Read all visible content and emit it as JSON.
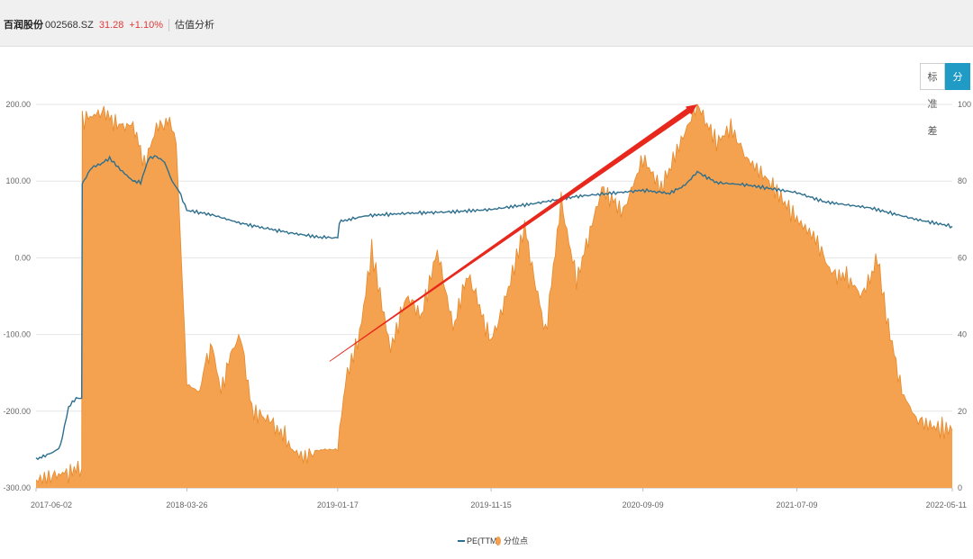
{
  "header": {
    "stock_name": "百润股份",
    "stock_code": "002568.SZ",
    "price": "31.28",
    "change": "+1.10%",
    "tab_label": "估值分析"
  },
  "toggle": {
    "std_label": "标准差",
    "percentile_label": "分位点"
  },
  "colors": {
    "pe_line": "#2e6f8e",
    "percentile_area": "#f4a24f",
    "percentile_edge": "#e6892c",
    "active_tab": "#1f9bc6",
    "arrow": "#e8281c"
  },
  "chart_data": {
    "type": "line",
    "x_type": "date",
    "x_range": [
      "2017-06-02",
      "2022-05-11"
    ],
    "x_ticks": [
      "2017-06-02",
      "2018-03-26",
      "2019-01-17",
      "2019-11-15",
      "2020-09-09",
      "2021-07-09",
      "2022-05-11"
    ],
    "left_axis": {
      "ylim": [
        -300,
        200
      ],
      "ticks": [
        "200.00",
        "100.00",
        "0.00",
        "-100.00",
        "-200.00",
        "-300.00"
      ]
    },
    "right_axis": {
      "ylim": [
        0,
        100
      ],
      "ticks": [
        "100",
        "80",
        "60",
        "40",
        "20",
        "0"
      ]
    },
    "legend_position": "bottom-center",
    "annotation": {
      "type": "arrow",
      "from": [
        "2019-01-01",
        33
      ],
      "to": [
        "2020-12-25",
        100
      ]
    },
    "series": [
      {
        "name": "PE(TTM)",
        "type": "line",
        "axis": "left",
        "x": [
          "2017-06-02",
          "2017-06-20",
          "2017-07-10",
          "2017-07-20",
          "2017-08-05",
          "2017-08-20",
          "2017-08-31",
          "2017-09-01",
          "2017-09-20",
          "2017-10-10",
          "2017-10-25",
          "2017-11-15",
          "2017-12-10",
          "2017-12-25",
          "2018-01-10",
          "2018-01-25",
          "2018-02-10",
          "2018-02-25",
          "2018-03-05",
          "2018-03-10",
          "2018-03-26",
          "2018-05-15",
          "2018-07-10",
          "2018-09-01",
          "2018-10-20",
          "2018-12-10",
          "2019-01-17",
          "2019-01-20",
          "2019-03-15",
          "2019-06-01",
          "2019-09-01",
          "2019-11-15",
          "2020-02-01",
          "2020-05-01",
          "2020-09-09",
          "2020-11-01",
          "2020-12-01",
          "2020-12-25",
          "2021-02-01",
          "2021-04-01",
          "2021-07-09",
          "2021-09-01",
          "2021-12-01",
          "2022-03-01",
          "2022-05-11"
        ],
        "y": [
          -262,
          -258,
          -252,
          -245,
          -195,
          -183,
          -183,
          97,
          118,
          123,
          130,
          115,
          100,
          98,
          130,
          132,
          125,
          100,
          92,
          88,
          62,
          56,
          45,
          38,
          32,
          27,
          26,
          47,
          55,
          58,
          60,
          63,
          70,
          80,
          88,
          84,
          95,
          112,
          98,
          95,
          85,
          73,
          65,
          50,
          41
        ]
      },
      {
        "name": "分位点",
        "type": "area",
        "axis": "right",
        "x": [
          "2017-06-02",
          "2017-07-01",
          "2017-08-01",
          "2017-08-31",
          "2017-09-01",
          "2017-10-10",
          "2017-11-20",
          "2017-12-10",
          "2018-01-01",
          "2018-01-25",
          "2018-02-20",
          "2018-03-05",
          "2018-03-26",
          "2018-04-20",
          "2018-05-01",
          "2018-05-15",
          "2018-06-01",
          "2018-06-20",
          "2018-07-10",
          "2018-08-01",
          "2018-09-01",
          "2018-10-01",
          "2018-10-20",
          "2018-11-10",
          "2018-12-15",
          "2019-01-17",
          "2019-02-01",
          "2019-03-01",
          "2019-03-25",
          "2019-05-01",
          "2019-06-01",
          "2019-07-01",
          "2019-08-01",
          "2019-09-01",
          "2019-10-01",
          "2019-11-15",
          "2019-12-15",
          "2020-01-20",
          "2020-03-01",
          "2020-04-01",
          "2020-05-01",
          "2020-06-20",
          "2020-08-01",
          "2020-09-09",
          "2020-10-15",
          "2020-11-15",
          "2020-12-25",
          "2021-02-01",
          "2021-03-01",
          "2021-04-01",
          "2021-05-15",
          "2021-07-09",
          "2021-08-15",
          "2021-09-15",
          "2021-10-15",
          "2021-11-15",
          "2021-12-15",
          "2022-01-01",
          "2022-02-01",
          "2022-03-01",
          "2022-04-01",
          "2022-05-11"
        ],
        "y": [
          2,
          3,
          4,
          5,
          96,
          98,
          94,
          95,
          84,
          94,
          96,
          90,
          27,
          25,
          32,
          37,
          25,
          35,
          40,
          20,
          18,
          14,
          10,
          8,
          10,
          10,
          28,
          40,
          62,
          36,
          50,
          45,
          62,
          42,
          56,
          38,
          50,
          68,
          40,
          75,
          54,
          78,
          72,
          86,
          78,
          88,
          100,
          90,
          94,
          86,
          80,
          70,
          65,
          56,
          55,
          50,
          60,
          45,
          25,
          18,
          16,
          15
        ]
      }
    ]
  }
}
